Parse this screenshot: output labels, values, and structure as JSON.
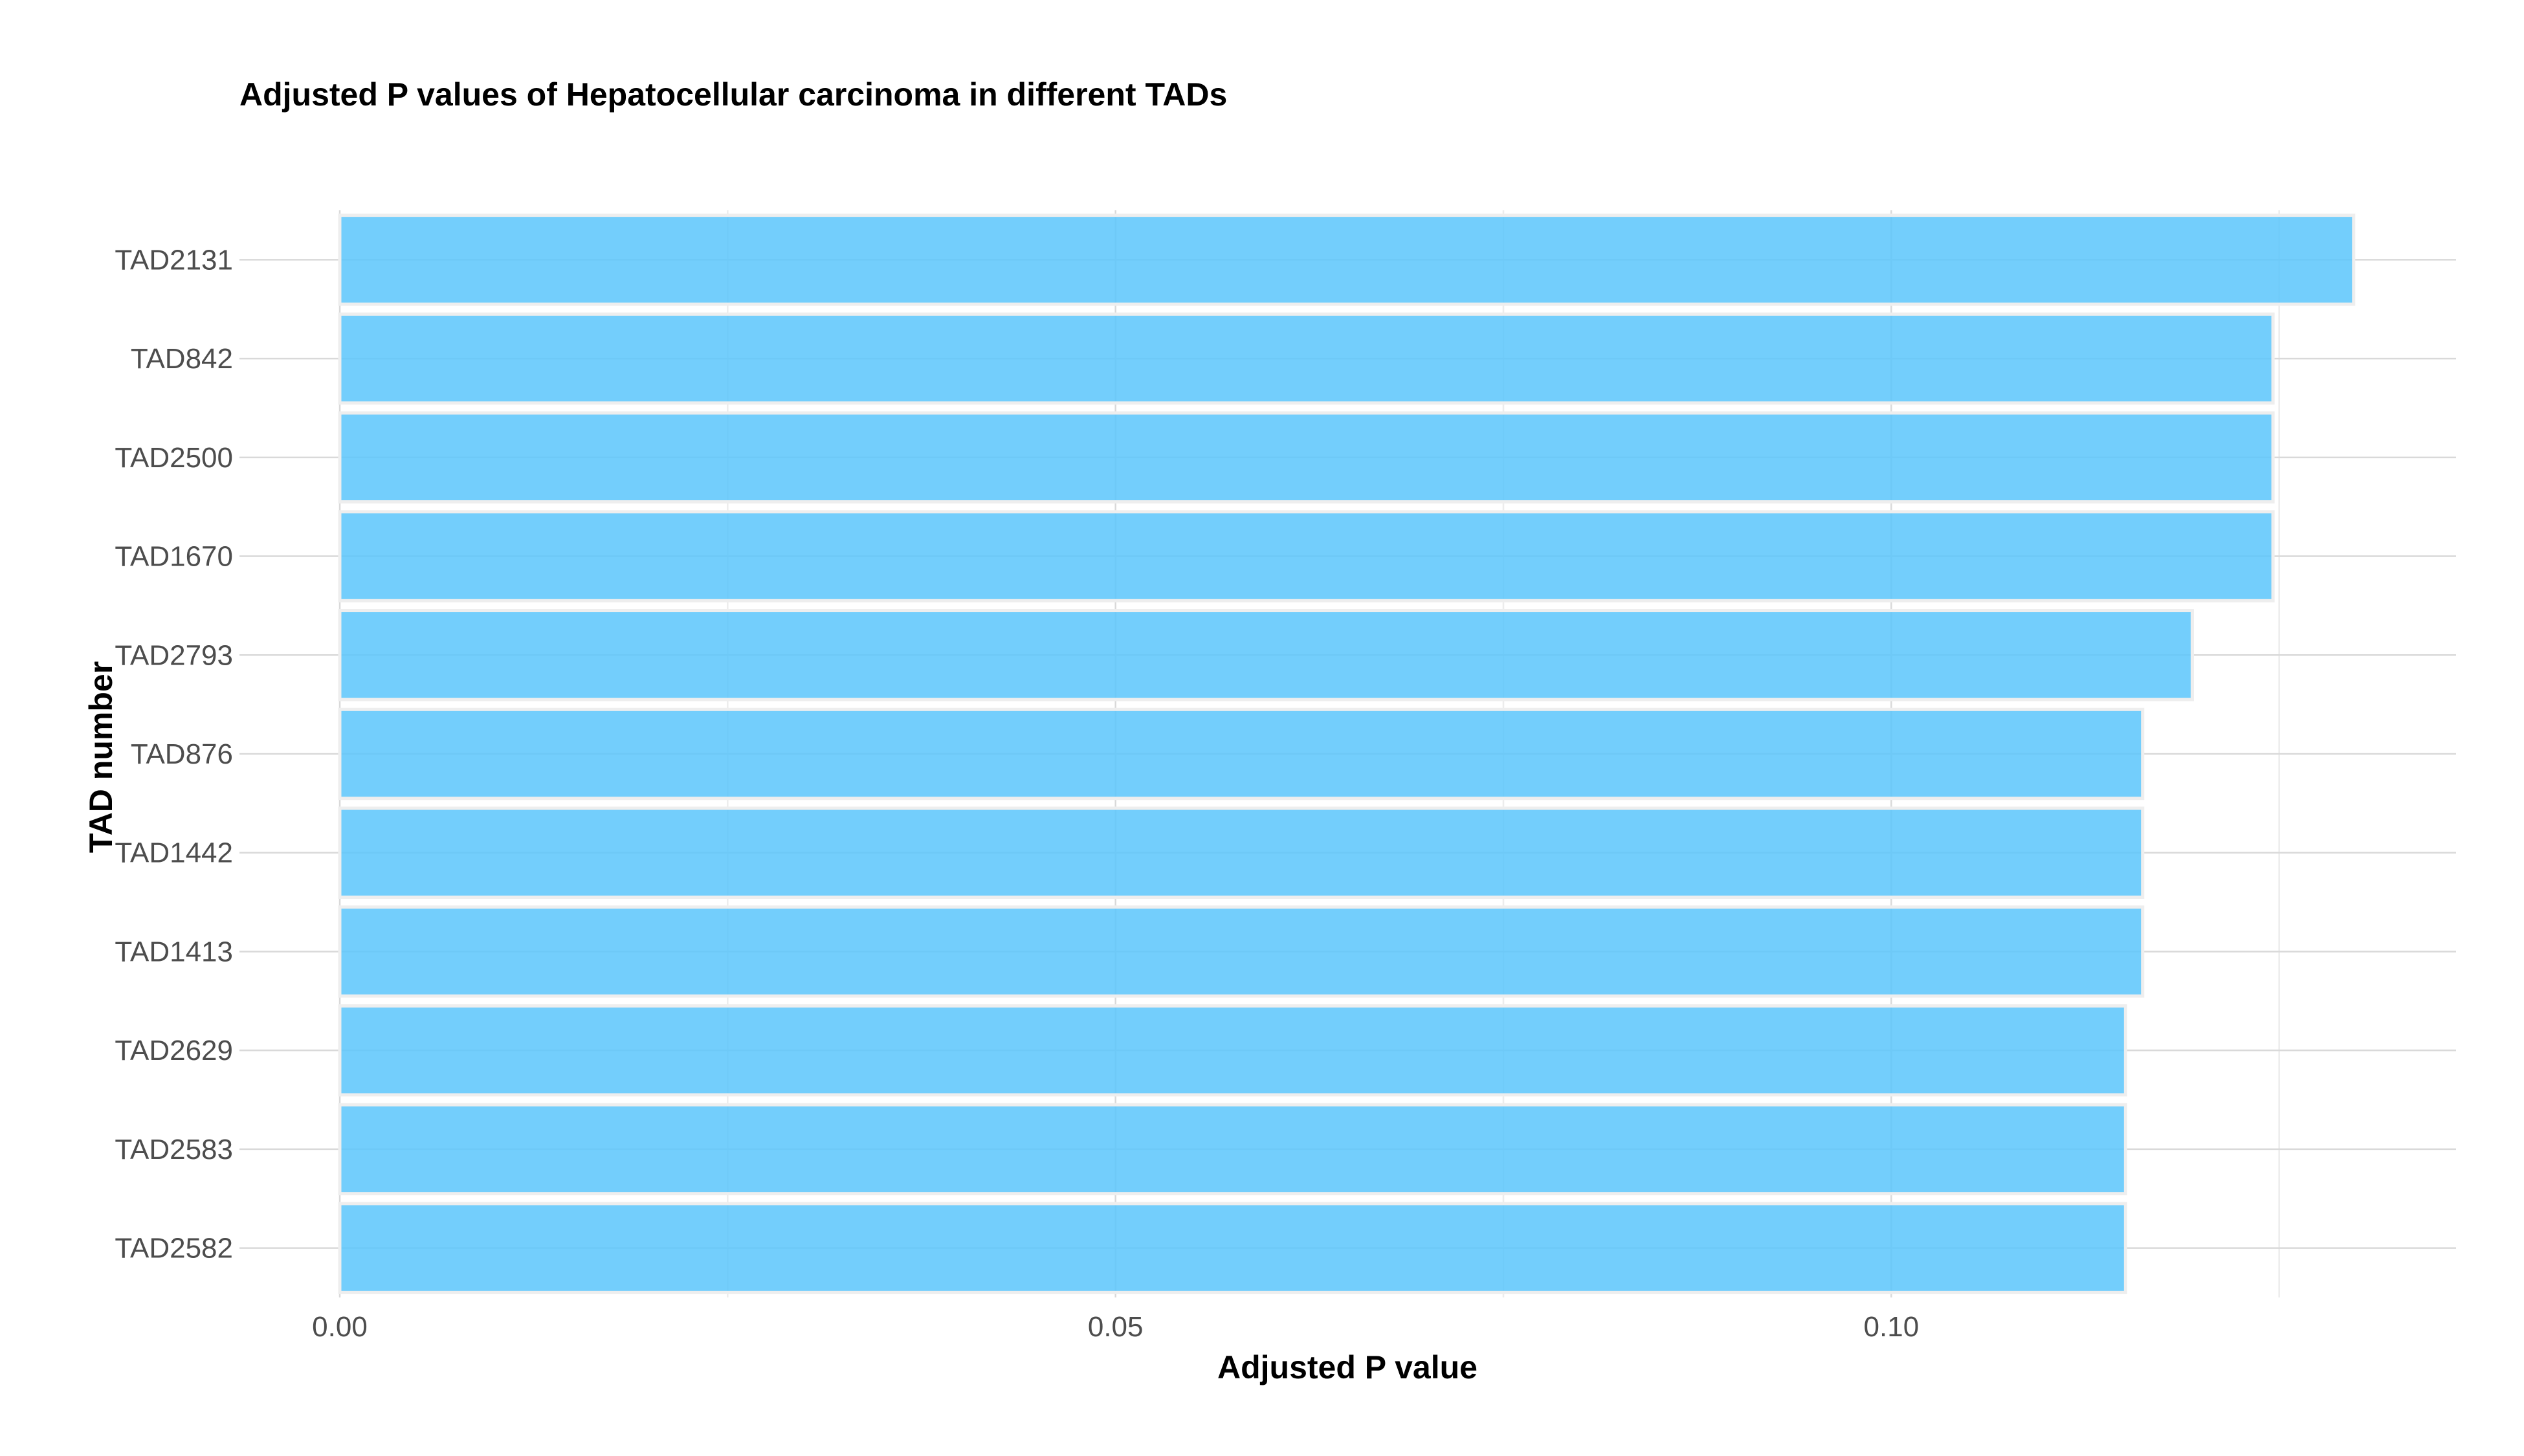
{
  "chart_data": {
    "type": "bar",
    "orientation": "horizontal",
    "title": "Adjusted P values of Hepatocellular carcinoma in different TADs",
    "xlabel": "Adjusted P value",
    "ylabel": "TAD number",
    "categories": [
      "TAD2131",
      "TAD842",
      "TAD2500",
      "TAD1670",
      "TAD2793",
      "TAD876",
      "TAD1442",
      "TAD1413",
      "TAD2629",
      "TAD2583",
      "TAD2582"
    ],
    "values": [
      0.1298,
      0.1246,
      0.1246,
      0.1246,
      0.1194,
      0.1162,
      0.1162,
      0.1162,
      0.1151,
      0.1151,
      0.1151
    ],
    "xlim": [
      0,
      0.1364
    ],
    "xticks": [
      0,
      0.05,
      0.1
    ],
    "xtick_labels": [
      "0.00",
      "0.05",
      "0.10"
    ],
    "bar_color": "#5bc5fb",
    "grid": true,
    "legend": "none"
  }
}
